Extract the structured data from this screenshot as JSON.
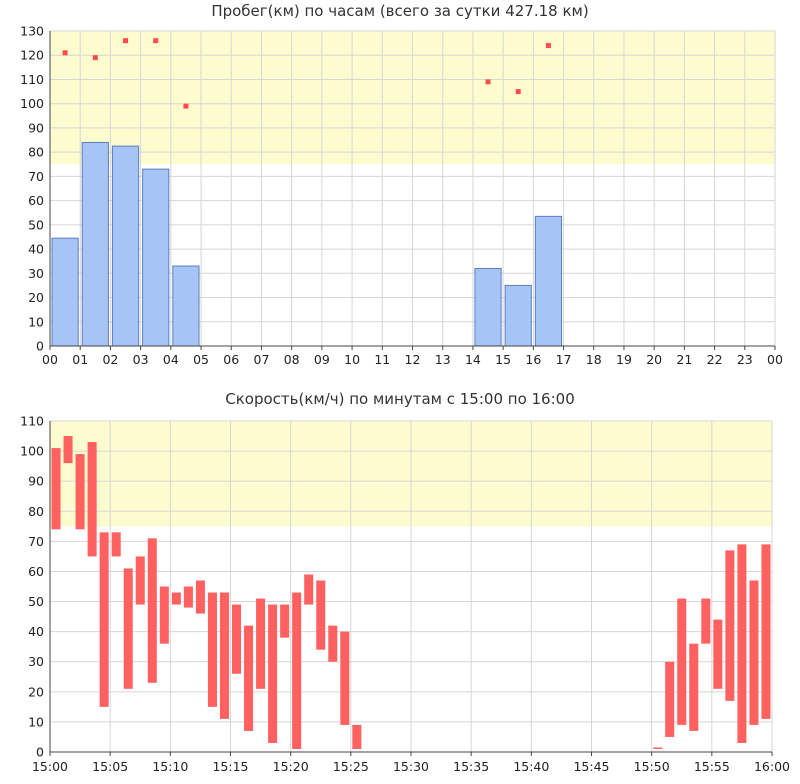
{
  "chart_data": [
    {
      "type": "bar",
      "title": "Пробег(км) по часам (всего за сутки 427.18 км)",
      "x_tick_labels": [
        "00",
        "01",
        "02",
        "03",
        "04",
        "05",
        "06",
        "07",
        "08",
        "09",
        "10",
        "11",
        "12",
        "13",
        "14",
        "15",
        "16",
        "17",
        "18",
        "19",
        "20",
        "21",
        "22",
        "23",
        "00"
      ],
      "y_tick_labels": [
        "0",
        "10",
        "20",
        "30",
        "40",
        "50",
        "60",
        "70",
        "80",
        "90",
        "100",
        "110",
        "120",
        "130"
      ],
      "ylim": [
        0,
        130
      ],
      "highlight_band": [
        75,
        130
      ],
      "bars": [
        {
          "hour": 0,
          "value": 44.5
        },
        {
          "hour": 1,
          "value": 84
        },
        {
          "hour": 2,
          "value": 82.5
        },
        {
          "hour": 3,
          "value": 73
        },
        {
          "hour": 4,
          "value": 33
        },
        {
          "hour": 14,
          "value": 32
        },
        {
          "hour": 15,
          "value": 25
        },
        {
          "hour": 16,
          "value": 53.5
        }
      ],
      "max_speed_markers": [
        {
          "hour": 0,
          "value": 121
        },
        {
          "hour": 1,
          "value": 119
        },
        {
          "hour": 2,
          "value": 126
        },
        {
          "hour": 3,
          "value": 126
        },
        {
          "hour": 4,
          "value": 99
        },
        {
          "hour": 14,
          "value": 109
        },
        {
          "hour": 15,
          "value": 105
        },
        {
          "hour": 16,
          "value": 124
        }
      ],
      "colors": {
        "bar_fill": "#a6c4f6",
        "bar_stroke": "#5b7fbf",
        "marker": "#ff4d4d",
        "band": "#fdfccf",
        "grid": "#d6d6d6"
      }
    },
    {
      "type": "bar",
      "title": "Скорость(км/ч) по минутам с 15:00 по 16:00",
      "x_tick_labels": [
        "15:00",
        "15:05",
        "15:10",
        "15:15",
        "15:20",
        "15:25",
        "15:30",
        "15:35",
        "15:40",
        "15:45",
        "15:50",
        "15:55",
        "16:00"
      ],
      "y_tick_labels": [
        "0",
        "10",
        "20",
        "30",
        "40",
        "50",
        "60",
        "70",
        "80",
        "90",
        "100",
        "110"
      ],
      "ylim": [
        0,
        110
      ],
      "highlight_band": [
        75,
        110
      ],
      "ranges": [
        {
          "minute": 0,
          "low": 74,
          "high": 101
        },
        {
          "minute": 1,
          "low": 96,
          "high": 105
        },
        {
          "minute": 2,
          "low": 74,
          "high": 99
        },
        {
          "minute": 3,
          "low": 65,
          "high": 103
        },
        {
          "minute": 4,
          "low": 15,
          "high": 73
        },
        {
          "minute": 5,
          "low": 65,
          "high": 73
        },
        {
          "minute": 6,
          "low": 21,
          "high": 61
        },
        {
          "minute": 7,
          "low": 49,
          "high": 65
        },
        {
          "minute": 8,
          "low": 23,
          "high": 71
        },
        {
          "minute": 9,
          "low": 36,
          "high": 55
        },
        {
          "minute": 10,
          "low": 49,
          "high": 53
        },
        {
          "minute": 11,
          "low": 48,
          "high": 55
        },
        {
          "minute": 12,
          "low": 46,
          "high": 57
        },
        {
          "minute": 13,
          "low": 15,
          "high": 53
        },
        {
          "minute": 14,
          "low": 11,
          "high": 53
        },
        {
          "minute": 15,
          "low": 26,
          "high": 49
        },
        {
          "minute": 16,
          "low": 7,
          "high": 42
        },
        {
          "minute": 17,
          "low": 21,
          "high": 51
        },
        {
          "minute": 18,
          "low": 3,
          "high": 49
        },
        {
          "minute": 19,
          "low": 38,
          "high": 49
        },
        {
          "minute": 20,
          "low": 1,
          "high": 53
        },
        {
          "minute": 21,
          "low": 49,
          "high": 59
        },
        {
          "minute": 22,
          "low": 34,
          "high": 57
        },
        {
          "minute": 23,
          "low": 30,
          "high": 42
        },
        {
          "minute": 24,
          "low": 9,
          "high": 40
        },
        {
          "minute": 25,
          "low": 1,
          "high": 9
        },
        {
          "minute": 50,
          "low": 1,
          "high": 1.5
        },
        {
          "minute": 51,
          "low": 5,
          "high": 30
        },
        {
          "minute": 52,
          "low": 9,
          "high": 51
        },
        {
          "minute": 53,
          "low": 7,
          "high": 36
        },
        {
          "minute": 54,
          "low": 36,
          "high": 51
        },
        {
          "minute": 55,
          "low": 21,
          "high": 44
        },
        {
          "minute": 56,
          "low": 17,
          "high": 67
        },
        {
          "minute": 57,
          "low": 3,
          "high": 69
        },
        {
          "minute": 58,
          "low": 9,
          "high": 57
        },
        {
          "minute": 59,
          "low": 11,
          "high": 69
        }
      ],
      "colors": {
        "bar_fill": "#ff6161",
        "band": "#fdfccf",
        "grid": "#d6d6d6"
      }
    }
  ]
}
